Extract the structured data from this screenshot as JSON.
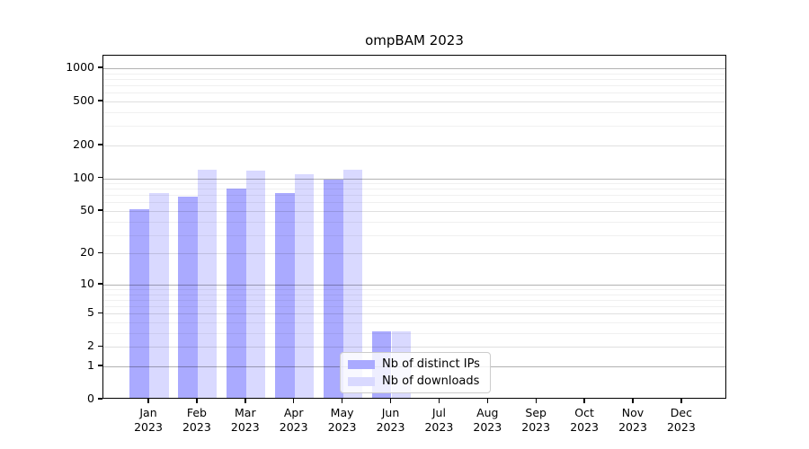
{
  "chart_data": {
    "type": "bar",
    "title": "ompBAM 2023",
    "categories": [
      "Jan 2023",
      "Feb 2023",
      "Mar 2023",
      "Apr 2023",
      "May 2023",
      "Jun 2023",
      "Jul 2023",
      "Aug 2023",
      "Sep 2023",
      "Oct 2023",
      "Nov 2023",
      "Dec 2023"
    ],
    "series": [
      {
        "name": "Nb of distinct IPs",
        "color": "#aaaaff",
        "values": [
          50,
          65,
          77,
          71,
          93,
          3,
          0,
          0,
          0,
          0,
          0,
          0
        ]
      },
      {
        "name": "Nb of downloads",
        "color": "#d9d9ff",
        "values": [
          71,
          115,
          113,
          104,
          116,
          3,
          0,
          0,
          0,
          0,
          0,
          0
        ]
      }
    ],
    "y_ticks": [
      0,
      1,
      2,
      5,
      10,
      20,
      50,
      100,
      200,
      500,
      1000
    ],
    "y_scale": "log1p",
    "ylim": [
      0,
      1300
    ],
    "grid": "horizontal",
    "legend_position": "lower center",
    "colors": {
      "major_gridline": "#b0b0b0",
      "labeled_gridline": "#dddddd",
      "minor_gridline": "#ececec",
      "axis": "#000000",
      "background": "#ffffff"
    }
  }
}
